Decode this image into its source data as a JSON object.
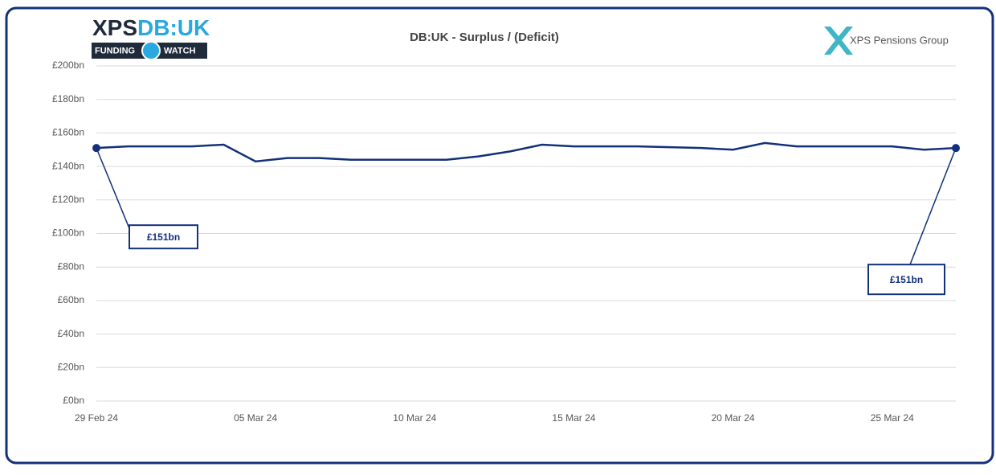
{
  "logos": {
    "main_left": "XPS",
    "main_right": "DB:UK",
    "badge_left": "FUNDING",
    "badge_right": "WATCH",
    "company": "XPS Pensions Group"
  },
  "chart_data": {
    "type": "line",
    "title": "DB:UK - Surplus / (Deficit)",
    "x": [
      "29 Feb 24",
      null,
      null,
      null,
      null,
      "05 Mar 24",
      null,
      null,
      null,
      null,
      "10 Mar 24",
      null,
      null,
      null,
      null,
      "15 Mar 24",
      null,
      null,
      null,
      null,
      "20 Mar 24",
      null,
      null,
      null,
      null,
      "25 Mar 24",
      null,
      null
    ],
    "series": [
      {
        "color": "#13307a",
        "values": [
          151,
          152,
          152,
          152,
          153,
          143,
          145,
          145,
          144,
          144,
          144,
          144,
          146,
          149,
          153,
          152,
          152,
          152,
          151.5,
          151,
          150,
          154,
          152,
          152,
          152,
          152,
          150,
          151
        ],
        "value_labels": [
          "£151bn",
          null,
          null,
          null,
          null,
          null,
          null,
          null,
          null,
          null,
          null,
          null,
          null,
          null,
          null,
          null,
          null,
          null,
          null,
          null,
          null,
          null,
          null,
          null,
          null,
          null,
          null,
          "£151bn"
        ]
      }
    ],
    "ylim": [
      0,
      200
    ],
    "yticks": [
      {
        "value": 0,
        "label": "£0bn"
      },
      {
        "value": 20,
        "label": "£20bn"
      },
      {
        "value": 40,
        "label": "£40bn"
      },
      {
        "value": 60,
        "label": "£60bn"
      },
      {
        "value": 80,
        "label": "£80bn"
      },
      {
        "value": 100,
        "label": "£100bn"
      },
      {
        "value": 120,
        "label": "£120bn"
      },
      {
        "value": 140,
        "label": "£140bn"
      },
      {
        "value": 160,
        "label": "£160bn"
      },
      {
        "value": 180,
        "label": "£180bn"
      },
      {
        "value": 200,
        "label": "£200bn"
      }
    ],
    "grid": true
  }
}
